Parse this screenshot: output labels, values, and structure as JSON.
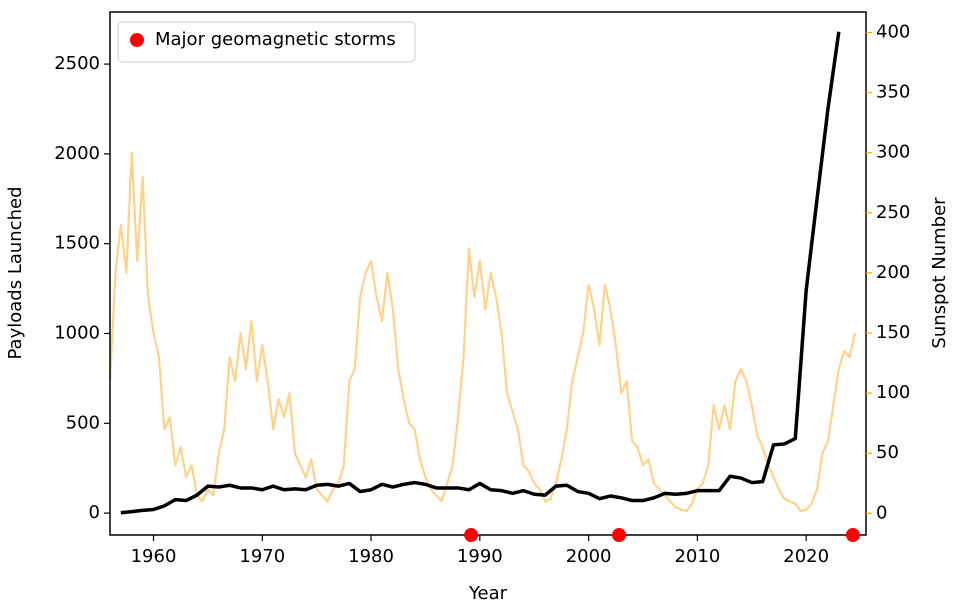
{
  "chart_data": {
    "type": "line",
    "xlabel": "Year",
    "ylabel": "Payloads Launched",
    "y2label": "Sunspot Number",
    "xlim": [
      1956,
      2025.5
    ],
    "xticks": [
      1960,
      1970,
      1980,
      1990,
      2000,
      2010,
      2020
    ],
    "ylim": [
      -122,
      2790
    ],
    "yticks": [
      0,
      500,
      1000,
      1500,
      2000,
      2500
    ],
    "y2lim": [
      -18,
      417
    ],
    "y2ticks": [
      0,
      50,
      100,
      150,
      200,
      250,
      300,
      350,
      400
    ],
    "y2color": "#ffa500",
    "legend": "upper left",
    "series": [
      {
        "type": "line",
        "axis": "y2",
        "color": "#ffd28a",
        "x": [
          1956.0,
          1956.5,
          1957.0,
          1957.5,
          1958.0,
          1958.5,
          1959.0,
          1959.5,
          1960.0,
          1960.5,
          1961.0,
          1961.5,
          1962.0,
          1962.5,
          1963.0,
          1963.5,
          1964.0,
          1964.5,
          1965.0,
          1965.5,
          1966.0,
          1966.5,
          1967.0,
          1967.5,
          1968.0,
          1968.5,
          1969.0,
          1969.5,
          1970.0,
          1970.5,
          1971.0,
          1971.5,
          1972.0,
          1972.5,
          1973.0,
          1973.5,
          1974.0,
          1974.5,
          1975.0,
          1975.5,
          1976.0,
          1976.5,
          1977.0,
          1977.5,
          1978.0,
          1978.5,
          1979.0,
          1979.5,
          1980.0,
          1980.5,
          1981.0,
          1981.5,
          1982.0,
          1982.5,
          1983.0,
          1983.5,
          1984.0,
          1984.5,
          1985.0,
          1985.5,
          1986.0,
          1986.5,
          1987.0,
          1987.5,
          1988.0,
          1988.5,
          1989.0,
          1989.5,
          1990.0,
          1990.5,
          1991.0,
          1991.5,
          1992.0,
          1992.5,
          1993.0,
          1993.5,
          1994.0,
          1994.5,
          1995.0,
          1995.5,
          1996.0,
          1996.5,
          1997.0,
          1997.5,
          1998.0,
          1998.5,
          1999.0,
          1999.5,
          2000.0,
          2000.5,
          2001.0,
          2001.5,
          2002.0,
          2002.5,
          2003.0,
          2003.5,
          2004.0,
          2004.5,
          2005.0,
          2005.5,
          2006.0,
          2006.5,
          2007.0,
          2007.5,
          2008.0,
          2008.5,
          2009.0,
          2009.5,
          2010.0,
          2010.5,
          2011.0,
          2011.5,
          2012.0,
          2012.5,
          2013.0,
          2013.5,
          2014.0,
          2014.5,
          2015.0,
          2015.5,
          2016.0,
          2016.5,
          2017.0,
          2017.5,
          2018.0,
          2018.5,
          2019.0,
          2019.5,
          2020.0,
          2020.5,
          2021.0,
          2021.5,
          2022.0,
          2022.5,
          2023.0,
          2023.5,
          2024.0,
          2024.5
        ],
        "values": [
          110,
          200,
          240,
          200,
          300,
          210,
          280,
          180,
          150,
          130,
          70,
          80,
          40,
          55,
          30,
          40,
          15,
          10,
          20,
          15,
          50,
          70,
          130,
          110,
          150,
          120,
          160,
          110,
          140,
          110,
          70,
          95,
          80,
          100,
          50,
          40,
          30,
          45,
          20,
          15,
          10,
          20,
          25,
          40,
          110,
          120,
          180,
          200,
          210,
          180,
          160,
          200,
          170,
          120,
          95,
          75,
          70,
          45,
          30,
          20,
          15,
          10,
          25,
          40,
          80,
          130,
          220,
          180,
          210,
          170,
          200,
          180,
          150,
          100,
          85,
          70,
          40,
          35,
          25,
          20,
          10,
          12,
          25,
          45,
          70,
          110,
          130,
          150,
          190,
          170,
          140,
          190,
          170,
          140,
          100,
          110,
          60,
          55,
          40,
          45,
          25,
          20,
          15,
          10,
          5,
          3,
          2,
          8,
          20,
          25,
          40,
          90,
          70,
          90,
          70,
          110,
          120,
          110,
          90,
          65,
          55,
          40,
          30,
          20,
          12,
          10,
          8,
          2,
          3,
          8,
          20,
          50,
          60,
          90,
          120,
          135,
          130,
          150
        ]
      },
      {
        "type": "line",
        "color": "#000000",
        "x": [
          1957,
          1958,
          1959,
          1960,
          1961,
          1962,
          1963,
          1964,
          1965,
          1966,
          1967,
          1968,
          1969,
          1970,
          1971,
          1972,
          1973,
          1974,
          1975,
          1976,
          1977,
          1978,
          1979,
          1980,
          1981,
          1982,
          1983,
          1984,
          1985,
          1986,
          1987,
          1988,
          1989,
          1990,
          1991,
          1992,
          1993,
          1994,
          1995,
          1996,
          1997,
          1998,
          1999,
          2000,
          2001,
          2002,
          2003,
          2004,
          2005,
          2006,
          2007,
          2008,
          2009,
          2010,
          2011,
          2012,
          2013,
          2014,
          2015,
          2016,
          2017,
          2018,
          2019,
          2020,
          2021,
          2022,
          2023
        ],
        "values": [
          2,
          8,
          15,
          20,
          40,
          75,
          70,
          100,
          150,
          145,
          155,
          140,
          140,
          130,
          150,
          130,
          135,
          130,
          155,
          160,
          150,
          165,
          120,
          130,
          160,
          145,
          160,
          170,
          160,
          140,
          140,
          140,
          130,
          165,
          130,
          125,
          110,
          125,
          105,
          100,
          150,
          155,
          120,
          110,
          80,
          95,
          85,
          70,
          70,
          85,
          110,
          105,
          110,
          125,
          125,
          125,
          205,
          195,
          170,
          175,
          380,
          385,
          415,
          1240,
          1750,
          2250,
          2680
        ]
      },
      {
        "type": "scatter",
        "name": "Major geomagnetic storms",
        "color": "#ff0000",
        "x": [
          1989.2,
          2002.8,
          2024.3
        ],
        "values": [
          -122,
          -122,
          -122
        ]
      }
    ]
  }
}
